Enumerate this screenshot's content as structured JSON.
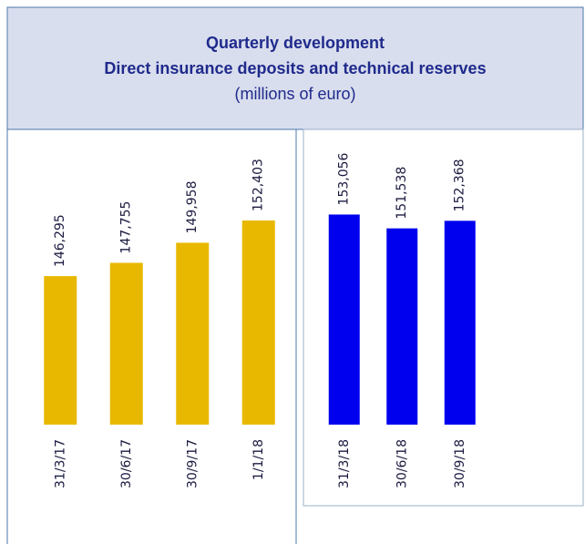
{
  "header": {
    "title": "Quarterly development",
    "subtitle": "Direct insurance deposits and technical reserves",
    "unit": "(millions of euro)"
  },
  "chart_data": [
    {
      "type": "bar",
      "categories": [
        "31/3/17",
        "30/6/17",
        "30/9/17",
        "1/1/18"
      ],
      "values": [
        146295,
        147755,
        149958,
        152403
      ],
      "value_labels": [
        "146,295",
        "147,755",
        "149,958",
        "152,403"
      ],
      "color": "#e8b800",
      "ylim": [
        130000,
        155000
      ]
    },
    {
      "type": "bar",
      "categories": [
        "31/3/18",
        "30/6/18",
        "30/9/18"
      ],
      "values": [
        153056,
        151538,
        152368
      ],
      "value_labels": [
        "153,056",
        "151,538",
        "152,368"
      ],
      "color": "#0000ee",
      "ylim": [
        130000,
        155000
      ]
    }
  ]
}
